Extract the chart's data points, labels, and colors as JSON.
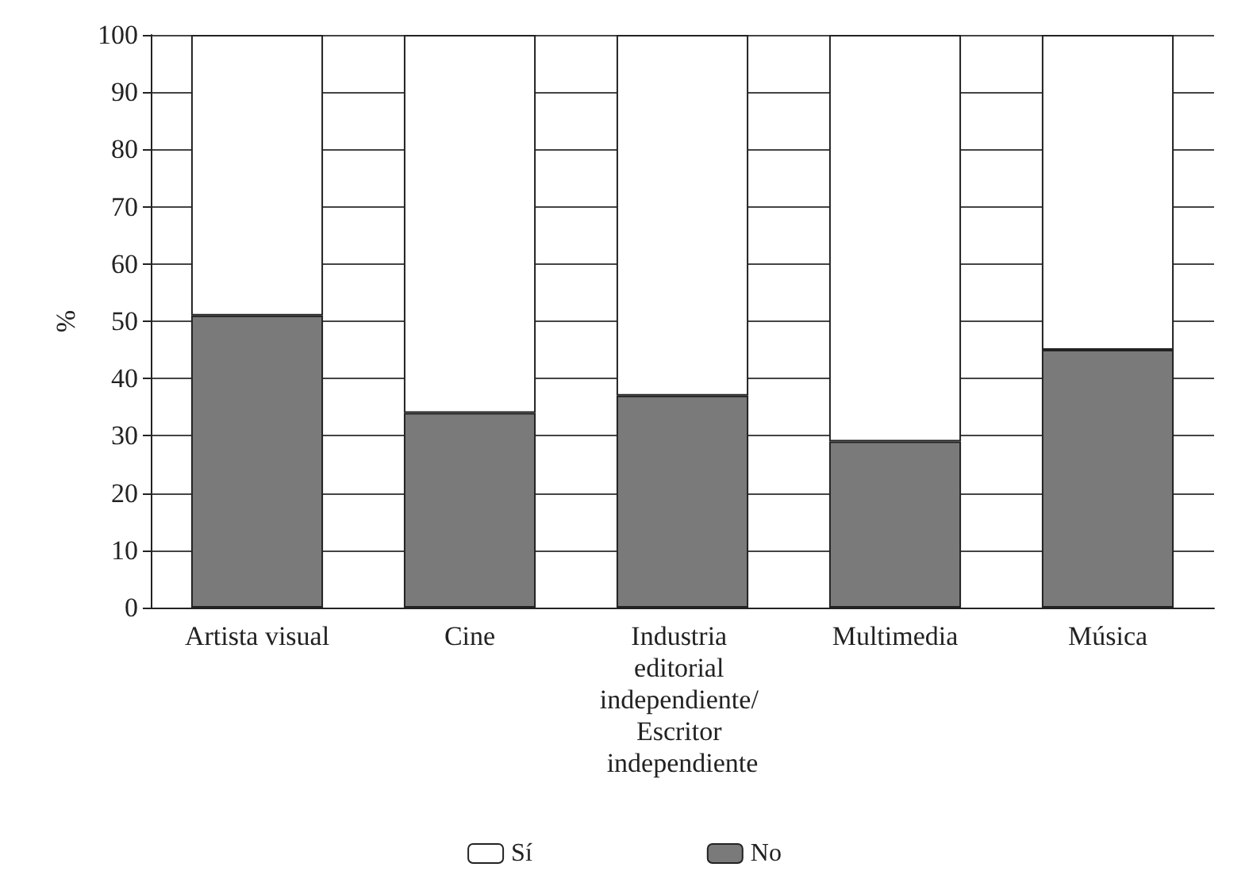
{
  "chart_data": {
    "type": "bar",
    "stacked": true,
    "ylabel": "%",
    "categories": [
      "Artista visual",
      "Cine",
      "Industria editorial independiente/ Escritor independiente",
      "Multimedia",
      "Música"
    ],
    "series": [
      {
        "name": "No",
        "color": "#7a7a7a",
        "values": [
          51,
          34,
          37,
          29,
          45
        ]
      },
      {
        "name": "Sí",
        "color": "#ffffff",
        "values": [
          49,
          66,
          63,
          71,
          55
        ]
      }
    ],
    "ylim": [
      0,
      100
    ],
    "yticks": [
      0,
      10,
      20,
      30,
      40,
      50,
      60,
      70,
      80,
      90,
      100
    ],
    "grid": "y",
    "legend": "bottom"
  }
}
